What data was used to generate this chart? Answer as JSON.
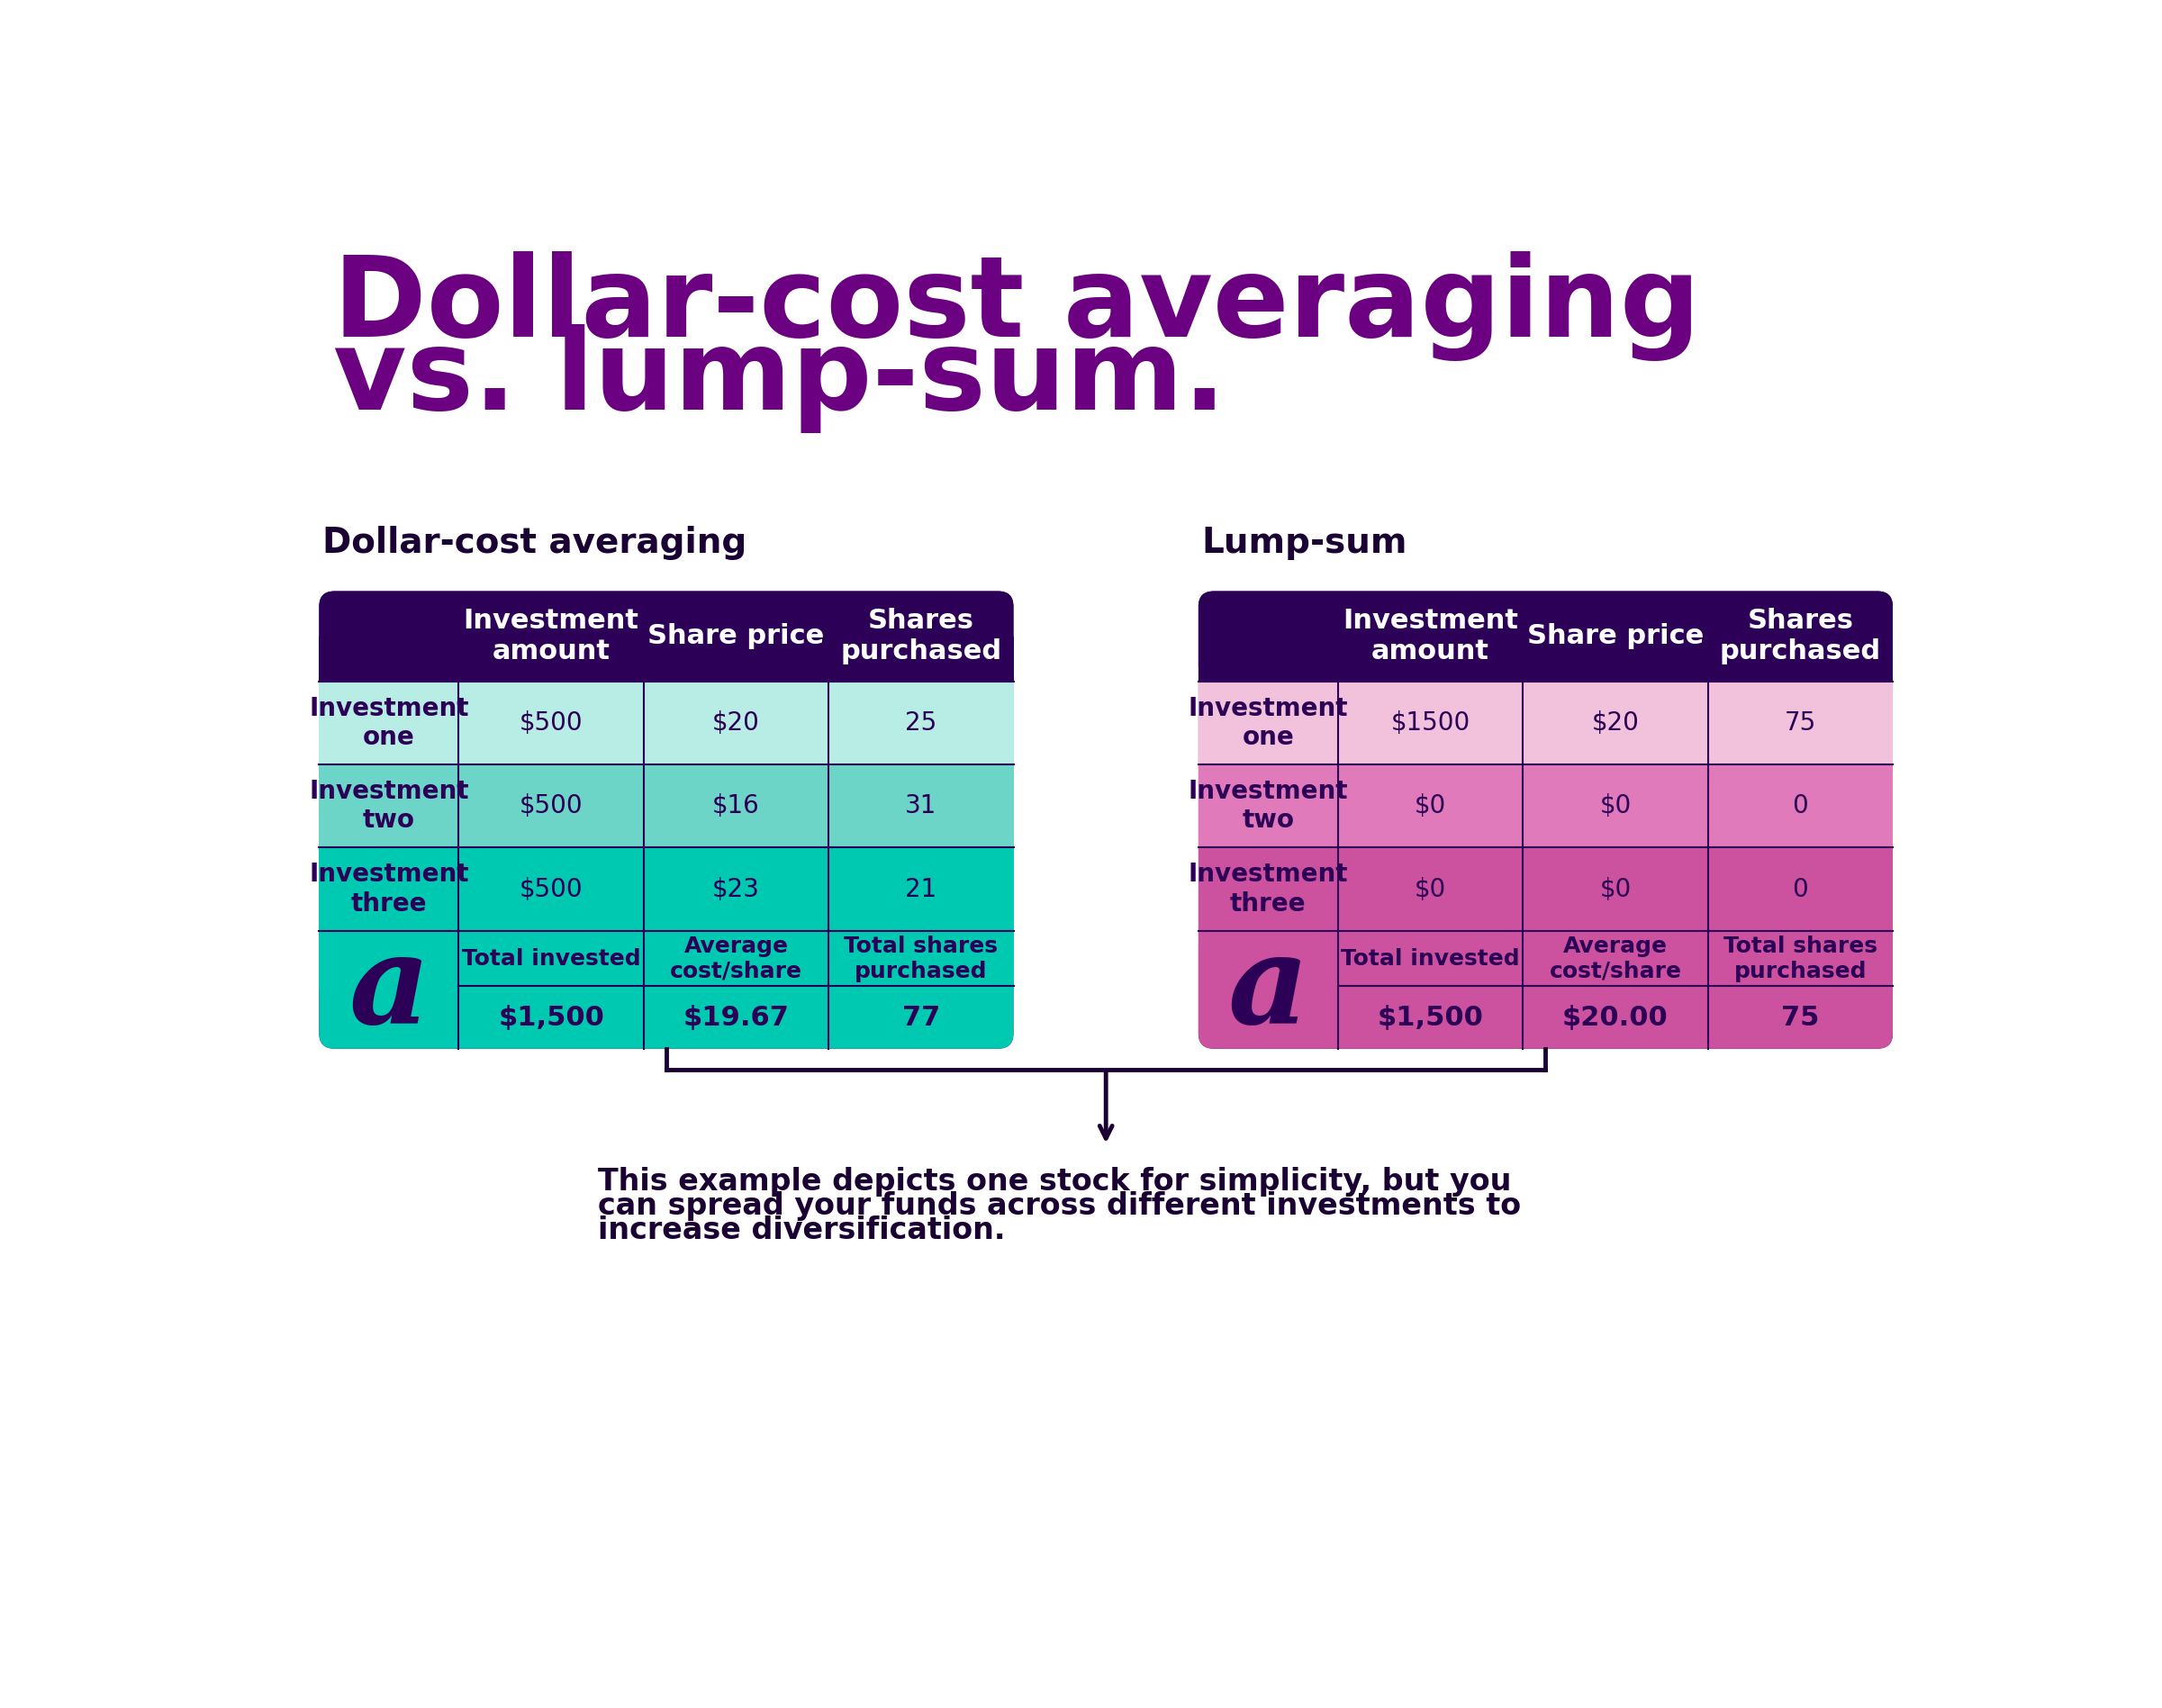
{
  "title_line1": "Dollar-cost averaging",
  "title_line2": "vs. lump-sum.",
  "title_color": "#6b0080",
  "title_fontsize": 90,
  "bg_color": "#ffffff",
  "dca_label": "Dollar-cost averaging",
  "lump_label": "Lump-sum",
  "section_label_color": "#1a0033",
  "section_label_fontsize": 28,
  "header_bg": "#2d0057",
  "header_text_color": "#ffffff",
  "headers": [
    "",
    "Investment\namount",
    "Share price",
    "Shares\npurchased"
  ],
  "dca_row_colors": [
    "#b8ede6",
    "#6dd5c8",
    "#00c9b1"
  ],
  "dca_row_label_color": "#2d0057",
  "dca_rows": [
    [
      "Investment\none",
      "$500",
      "$20",
      "25"
    ],
    [
      "Investment\ntwo",
      "$500",
      "$16",
      "31"
    ],
    [
      "Investment\nthree",
      "$500",
      "$23",
      "21"
    ]
  ],
  "dca_footer_bg": "#00c9b1",
  "dca_footer_label_color": "#1a0033",
  "dca_footer_values": [
    "$1,500",
    "$19.67",
    "77"
  ],
  "dca_footer_labels": [
    "Total invested",
    "Average\ncost/share",
    "Total shares\npurchased"
  ],
  "lump_row_colors": [
    "#f2c2dc",
    "#e07aba",
    "#cc52a0"
  ],
  "lump_row_label_color": "#2d0057",
  "lump_rows": [
    [
      "Investment\none",
      "$1500",
      "$20",
      "75"
    ],
    [
      "Investment\ntwo",
      "$0",
      "$0",
      "0"
    ],
    [
      "Investment\nthree",
      "$0",
      "$0",
      "0"
    ]
  ],
  "lump_footer_bg": "#cc52a0",
  "lump_footer_label_color": "#1a0033",
  "lump_footer_values": [
    "$1,500",
    "$20.00",
    "75"
  ],
  "lump_footer_labels": [
    "Total invested",
    "Average\ncost/share",
    "Total shares\npurchased"
  ],
  "footnote_line1": "This example depicts one stock for simplicity, but you",
  "footnote_line2": "can spread your funds across different investments to",
  "footnote_line3": "increase diversification.",
  "footnote_fontsize": 24,
  "footnote_color": "#1a0033",
  "logo_color": "#2d0057",
  "divider_color": "#2d0057",
  "arrow_color": "#1a0033"
}
